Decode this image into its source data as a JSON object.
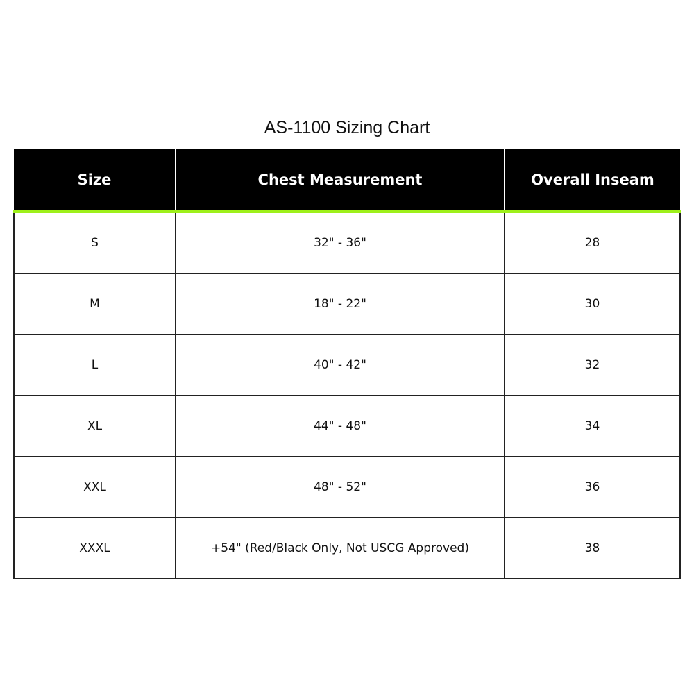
{
  "title": "AS-1100 Sizing Chart",
  "accent_color": "#9ef01a",
  "headers": [
    "Size",
    "Chest Measurement",
    "Overall Inseam"
  ],
  "rows": [
    [
      "S",
      "32\" - 36\"",
      "28"
    ],
    [
      "M",
      "18\" - 22\"",
      "30"
    ],
    [
      "L",
      "40\" - 42\"",
      "32"
    ],
    [
      "XL",
      "44\" - 48\"",
      "34"
    ],
    [
      "XXL",
      "48\" - 52\"",
      "36"
    ],
    [
      "XXXL",
      "+54\" (Red/Black Only, Not USCG Approved)",
      "38"
    ]
  ]
}
